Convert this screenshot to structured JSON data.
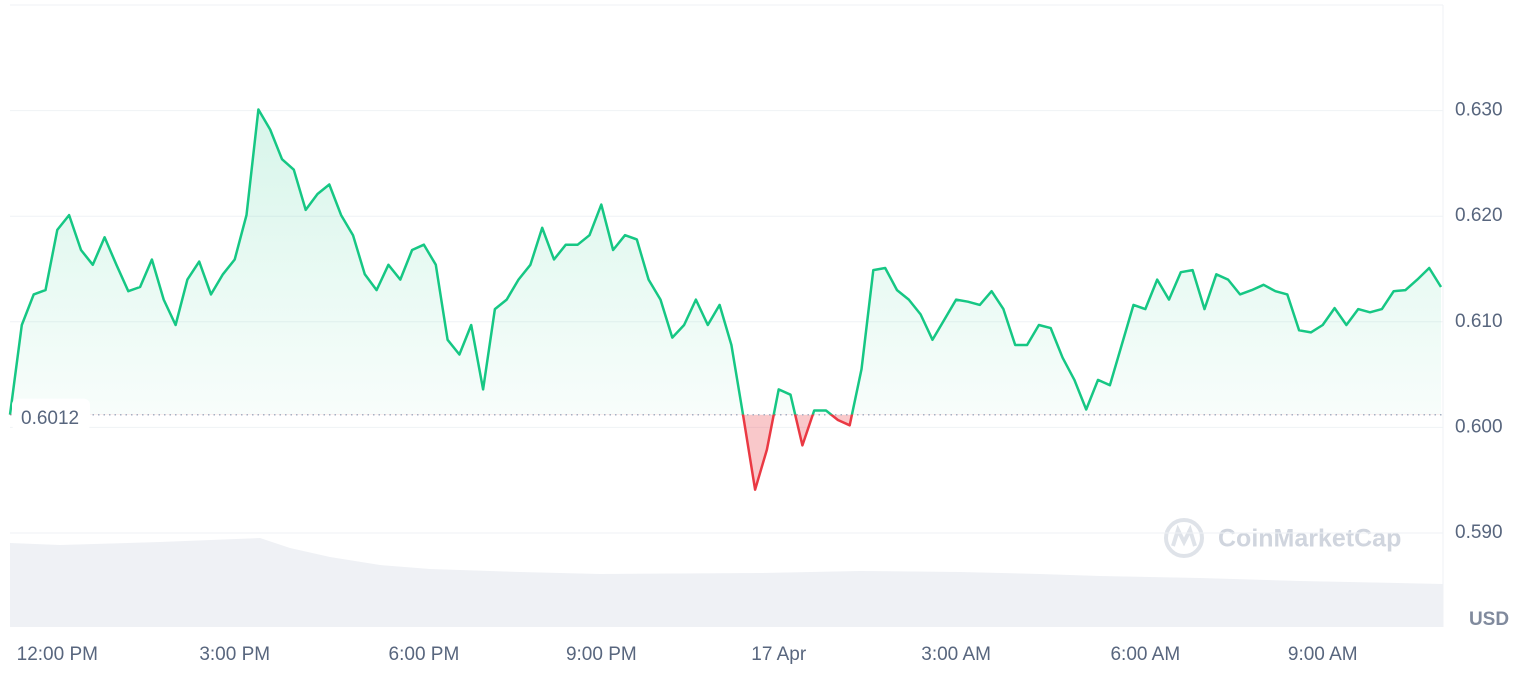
{
  "chart_data": {
    "type": "line",
    "categories": [
      null,
      null,
      null,
      null,
      "12:00 PM",
      null,
      null,
      null,
      null,
      null,
      null,
      null,
      null,
      null,
      null,
      null,
      null,
      null,
      null,
      "3:00 PM",
      null,
      null,
      null,
      null,
      null,
      null,
      null,
      null,
      null,
      null,
      null,
      null,
      null,
      null,
      null,
      "6:00 PM",
      null,
      null,
      null,
      null,
      null,
      null,
      null,
      null,
      null,
      null,
      null,
      null,
      null,
      null,
      "9:00 PM",
      null,
      null,
      null,
      null,
      null,
      null,
      null,
      null,
      null,
      null,
      null,
      null,
      null,
      null,
      "17 Apr",
      null,
      null,
      null,
      null,
      null,
      null,
      null,
      null,
      null,
      null,
      null,
      null,
      null,
      null,
      "3:00 AM",
      null,
      null,
      null,
      null,
      null,
      null,
      null,
      null,
      null,
      null,
      null,
      null,
      null,
      null,
      null,
      "6:00 AM",
      null,
      null,
      null,
      null,
      null,
      null,
      null,
      null,
      null,
      null,
      null,
      null,
      null,
      null,
      "9:00 AM",
      null,
      null,
      null,
      null,
      null,
      null,
      null,
      null,
      null,
      null
    ],
    "values": [
      0.6012,
      0.6097,
      0.6126,
      0.613,
      0.6187,
      0.6201,
      0.6168,
      0.6154,
      0.618,
      0.6154,
      0.6129,
      0.6133,
      0.6159,
      0.6121,
      0.6097,
      0.614,
      0.6157,
      0.6126,
      0.6145,
      0.6159,
      0.6201,
      0.6301,
      0.6282,
      0.6254,
      0.6244,
      0.6206,
      0.6221,
      0.623,
      0.6201,
      0.6182,
      0.6145,
      0.613,
      0.6154,
      0.614,
      0.6168,
      0.6173,
      0.6154,
      0.6083,
      0.6069,
      0.6097,
      0.6036,
      0.6112,
      0.6121,
      0.614,
      0.6154,
      0.6189,
      0.6159,
      0.6173,
      0.6173,
      0.6182,
      0.6211,
      0.6168,
      0.6182,
      0.6178,
      0.614,
      0.6121,
      0.6085,
      0.6097,
      0.6121,
      0.6097,
      0.6116,
      0.6078,
      0.6011,
      0.5941,
      0.5979,
      0.6036,
      0.6031,
      0.5983,
      0.6016,
      0.6016,
      0.6007,
      0.6002,
      0.6055,
      0.6149,
      0.6151,
      0.613,
      0.6121,
      0.6107,
      0.6083,
      0.6102,
      0.6121,
      0.6119,
      0.6116,
      0.6129,
      0.6112,
      0.6078,
      0.6078,
      0.6097,
      0.6094,
      0.6066,
      0.6045,
      0.6017,
      0.6045,
      0.604,
      0.6078,
      0.6116,
      0.6112,
      0.614,
      0.6121,
      0.6147,
      0.6149,
      0.6112,
      0.6145,
      0.614,
      0.6126,
      0.613,
      0.6135,
      0.6129,
      0.6126,
      0.6092,
      0.609,
      0.6097,
      0.6113,
      0.6097,
      0.6112,
      0.6109,
      0.6112,
      0.6129,
      0.613,
      0.614,
      0.6151,
      0.6133
    ],
    "color_up": "#16c784",
    "color_down": "#ea3943",
    "baseline": 0.6012,
    "ylim": [
      0.5811,
      0.64
    ],
    "yticks": [
      {
        "value": 0.59,
        "label": "0.590"
      },
      {
        "value": 0.6,
        "label": "0.600"
      },
      {
        "value": 0.61,
        "label": "0.610"
      },
      {
        "value": 0.62,
        "label": "0.620"
      },
      {
        "value": 0.63,
        "label": "0.630"
      }
    ],
    "grid": true,
    "unit": "USD",
    "watermark": "CoinMarketCap"
  }
}
